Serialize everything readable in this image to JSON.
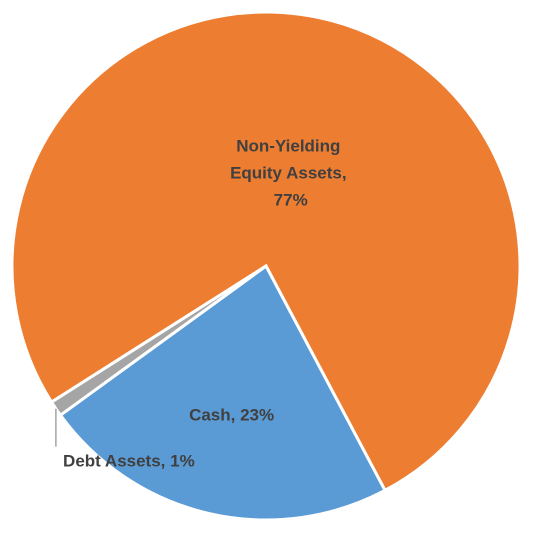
{
  "chart_data": {
    "type": "pie",
    "values": [
      77,
      23,
      1
    ],
    "value_labels": [
      "Non-Yielding Equity Assets, 77%",
      "Cash, 23%",
      "Debt Assets, 1%"
    ],
    "colors": [
      "#ED7D31",
      "#5B9BD5",
      "#A5A5A5"
    ]
  }
}
